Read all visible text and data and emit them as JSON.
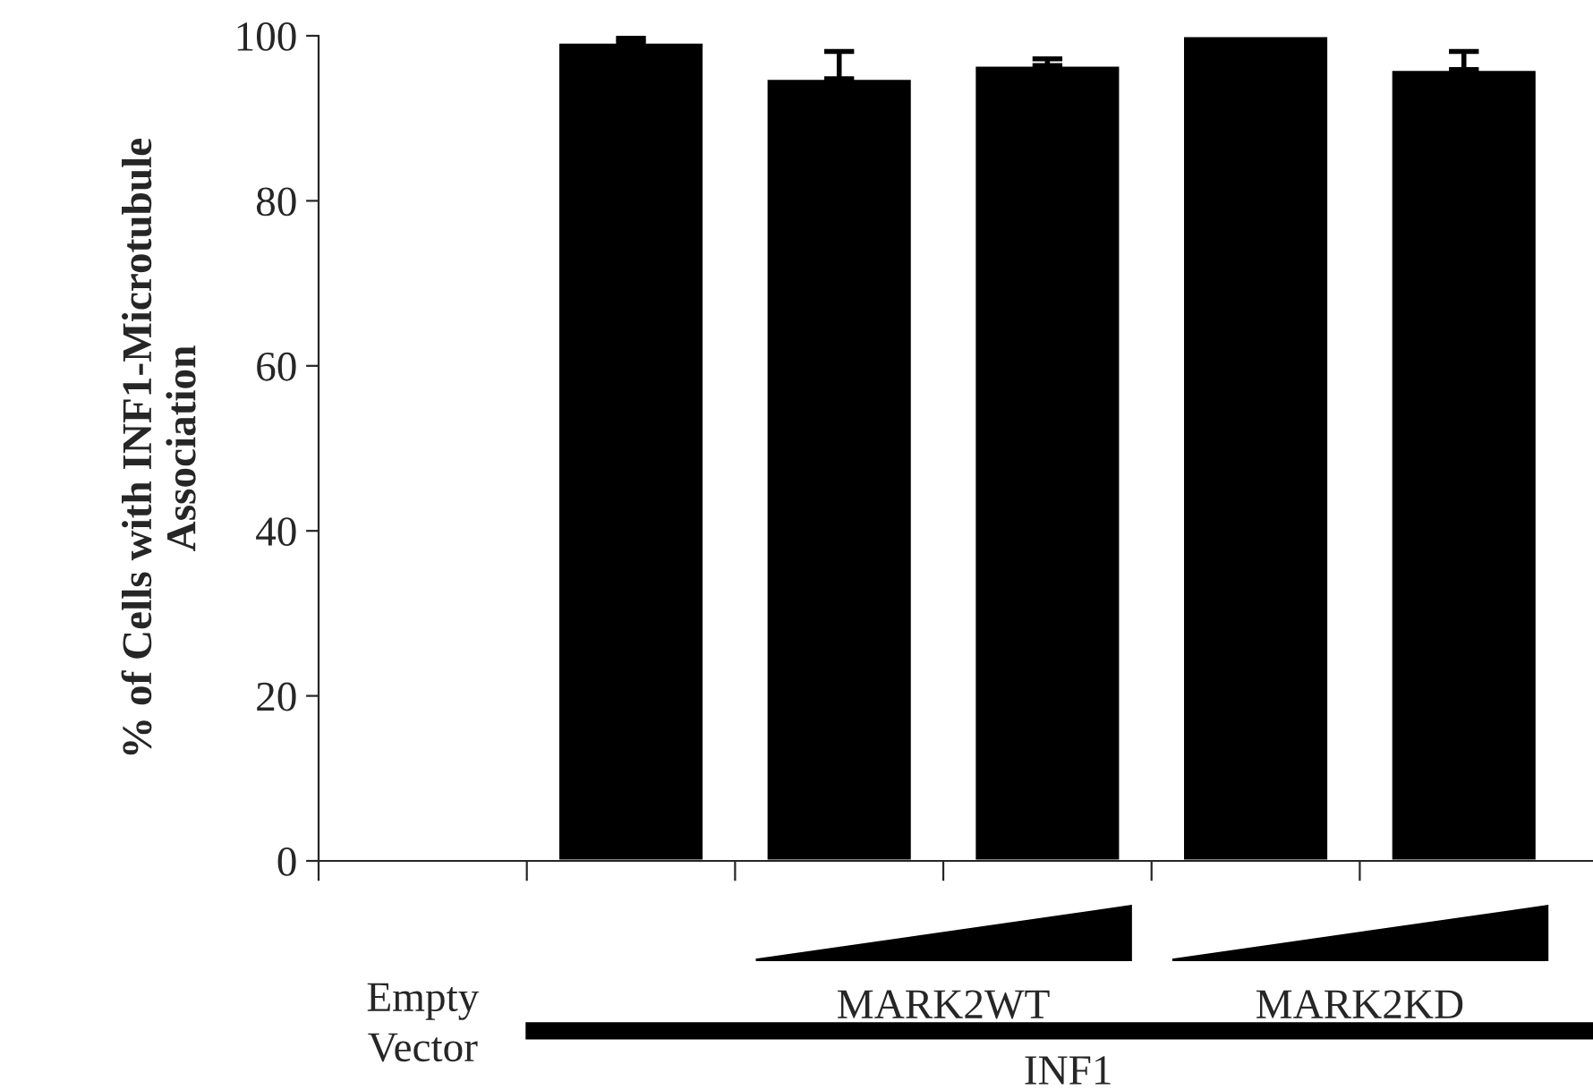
{
  "chart_data": {
    "type": "bar",
    "ylabel": "% of Cells with INF1-Microtubule\nAssociation",
    "categories": [
      null,
      null,
      null,
      null,
      null,
      null
    ],
    "values": [
      null,
      99.2,
      94.8,
      96.4,
      100,
      95.9
    ],
    "errors": [
      null,
      0.5,
      3.3,
      0.8,
      null,
      2.2
    ],
    "color": "#000000",
    "ylim": [
      0,
      100
    ],
    "yticks": [
      0,
      20,
      40,
      60,
      80,
      100
    ],
    "grid": false,
    "annotations": [
      "Empty\nVector",
      "MARK2WT",
      "MARK2KD",
      "INF1"
    ]
  }
}
